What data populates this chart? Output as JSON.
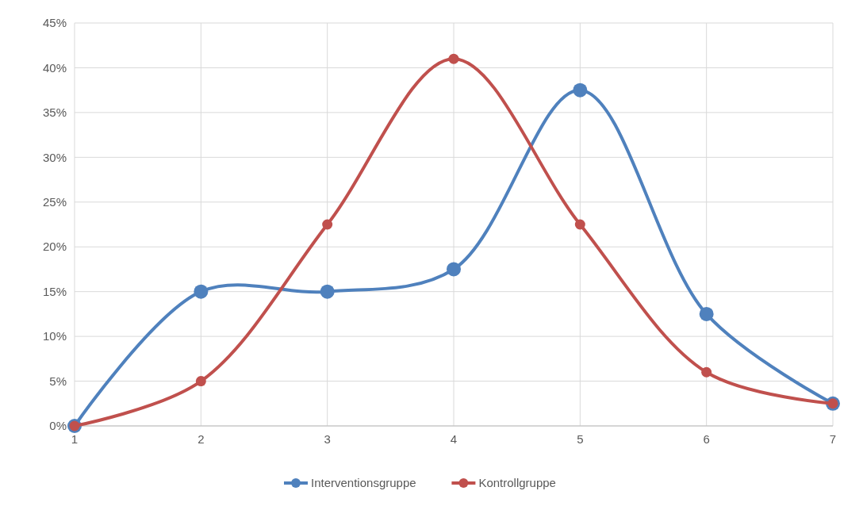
{
  "chart_data": {
    "type": "line",
    "categories": [
      "1",
      "2",
      "3",
      "4",
      "5",
      "6",
      "7"
    ],
    "series": [
      {
        "name": "Interventionsgruppe",
        "color": "#4f81bd",
        "values": [
          0,
          15,
          15,
          17.5,
          37.5,
          12.5,
          2.5
        ]
      },
      {
        "name": "Kontrollgruppe",
        "color": "#c0504d",
        "values": [
          0,
          5,
          22.5,
          41,
          22.5,
          6,
          2.5
        ]
      }
    ],
    "ylim": [
      0,
      45
    ],
    "yticks": [
      {
        "value": 0,
        "label": "0%"
      },
      {
        "value": 5,
        "label": "5%"
      },
      {
        "value": 10,
        "label": "10%"
      },
      {
        "value": 15,
        "label": "15%"
      },
      {
        "value": 20,
        "label": "20%"
      },
      {
        "value": 25,
        "label": "25%"
      },
      {
        "value": 30,
        "label": "30%"
      },
      {
        "value": 35,
        "label": "35%"
      },
      {
        "value": 40,
        "label": "40%"
      },
      {
        "value": 45,
        "label": "45%"
      }
    ],
    "grid": true,
    "legend": "bottom",
    "marker": "circle",
    "line_style": "solid"
  }
}
